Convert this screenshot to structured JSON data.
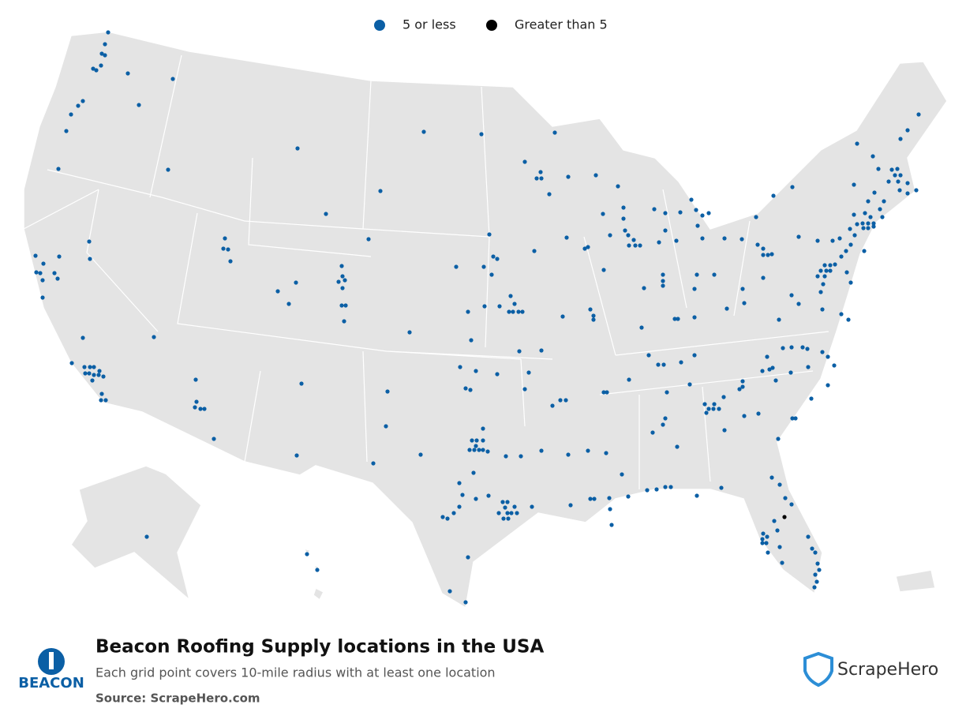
{
  "legend": {
    "items": [
      {
        "label": "5 or less",
        "color": "#0b5fa5"
      },
      {
        "label": "Greater than 5",
        "color": "#000000"
      }
    ]
  },
  "footer": {
    "title": "Beacon Roofing Supply locations in the USA",
    "subtitle": "Each grid point covers 10-mile radius with at least one location",
    "source": "Source: ScrapeHero.com",
    "brand": "BEACON",
    "publisher": "ScrapeHero"
  }
}
